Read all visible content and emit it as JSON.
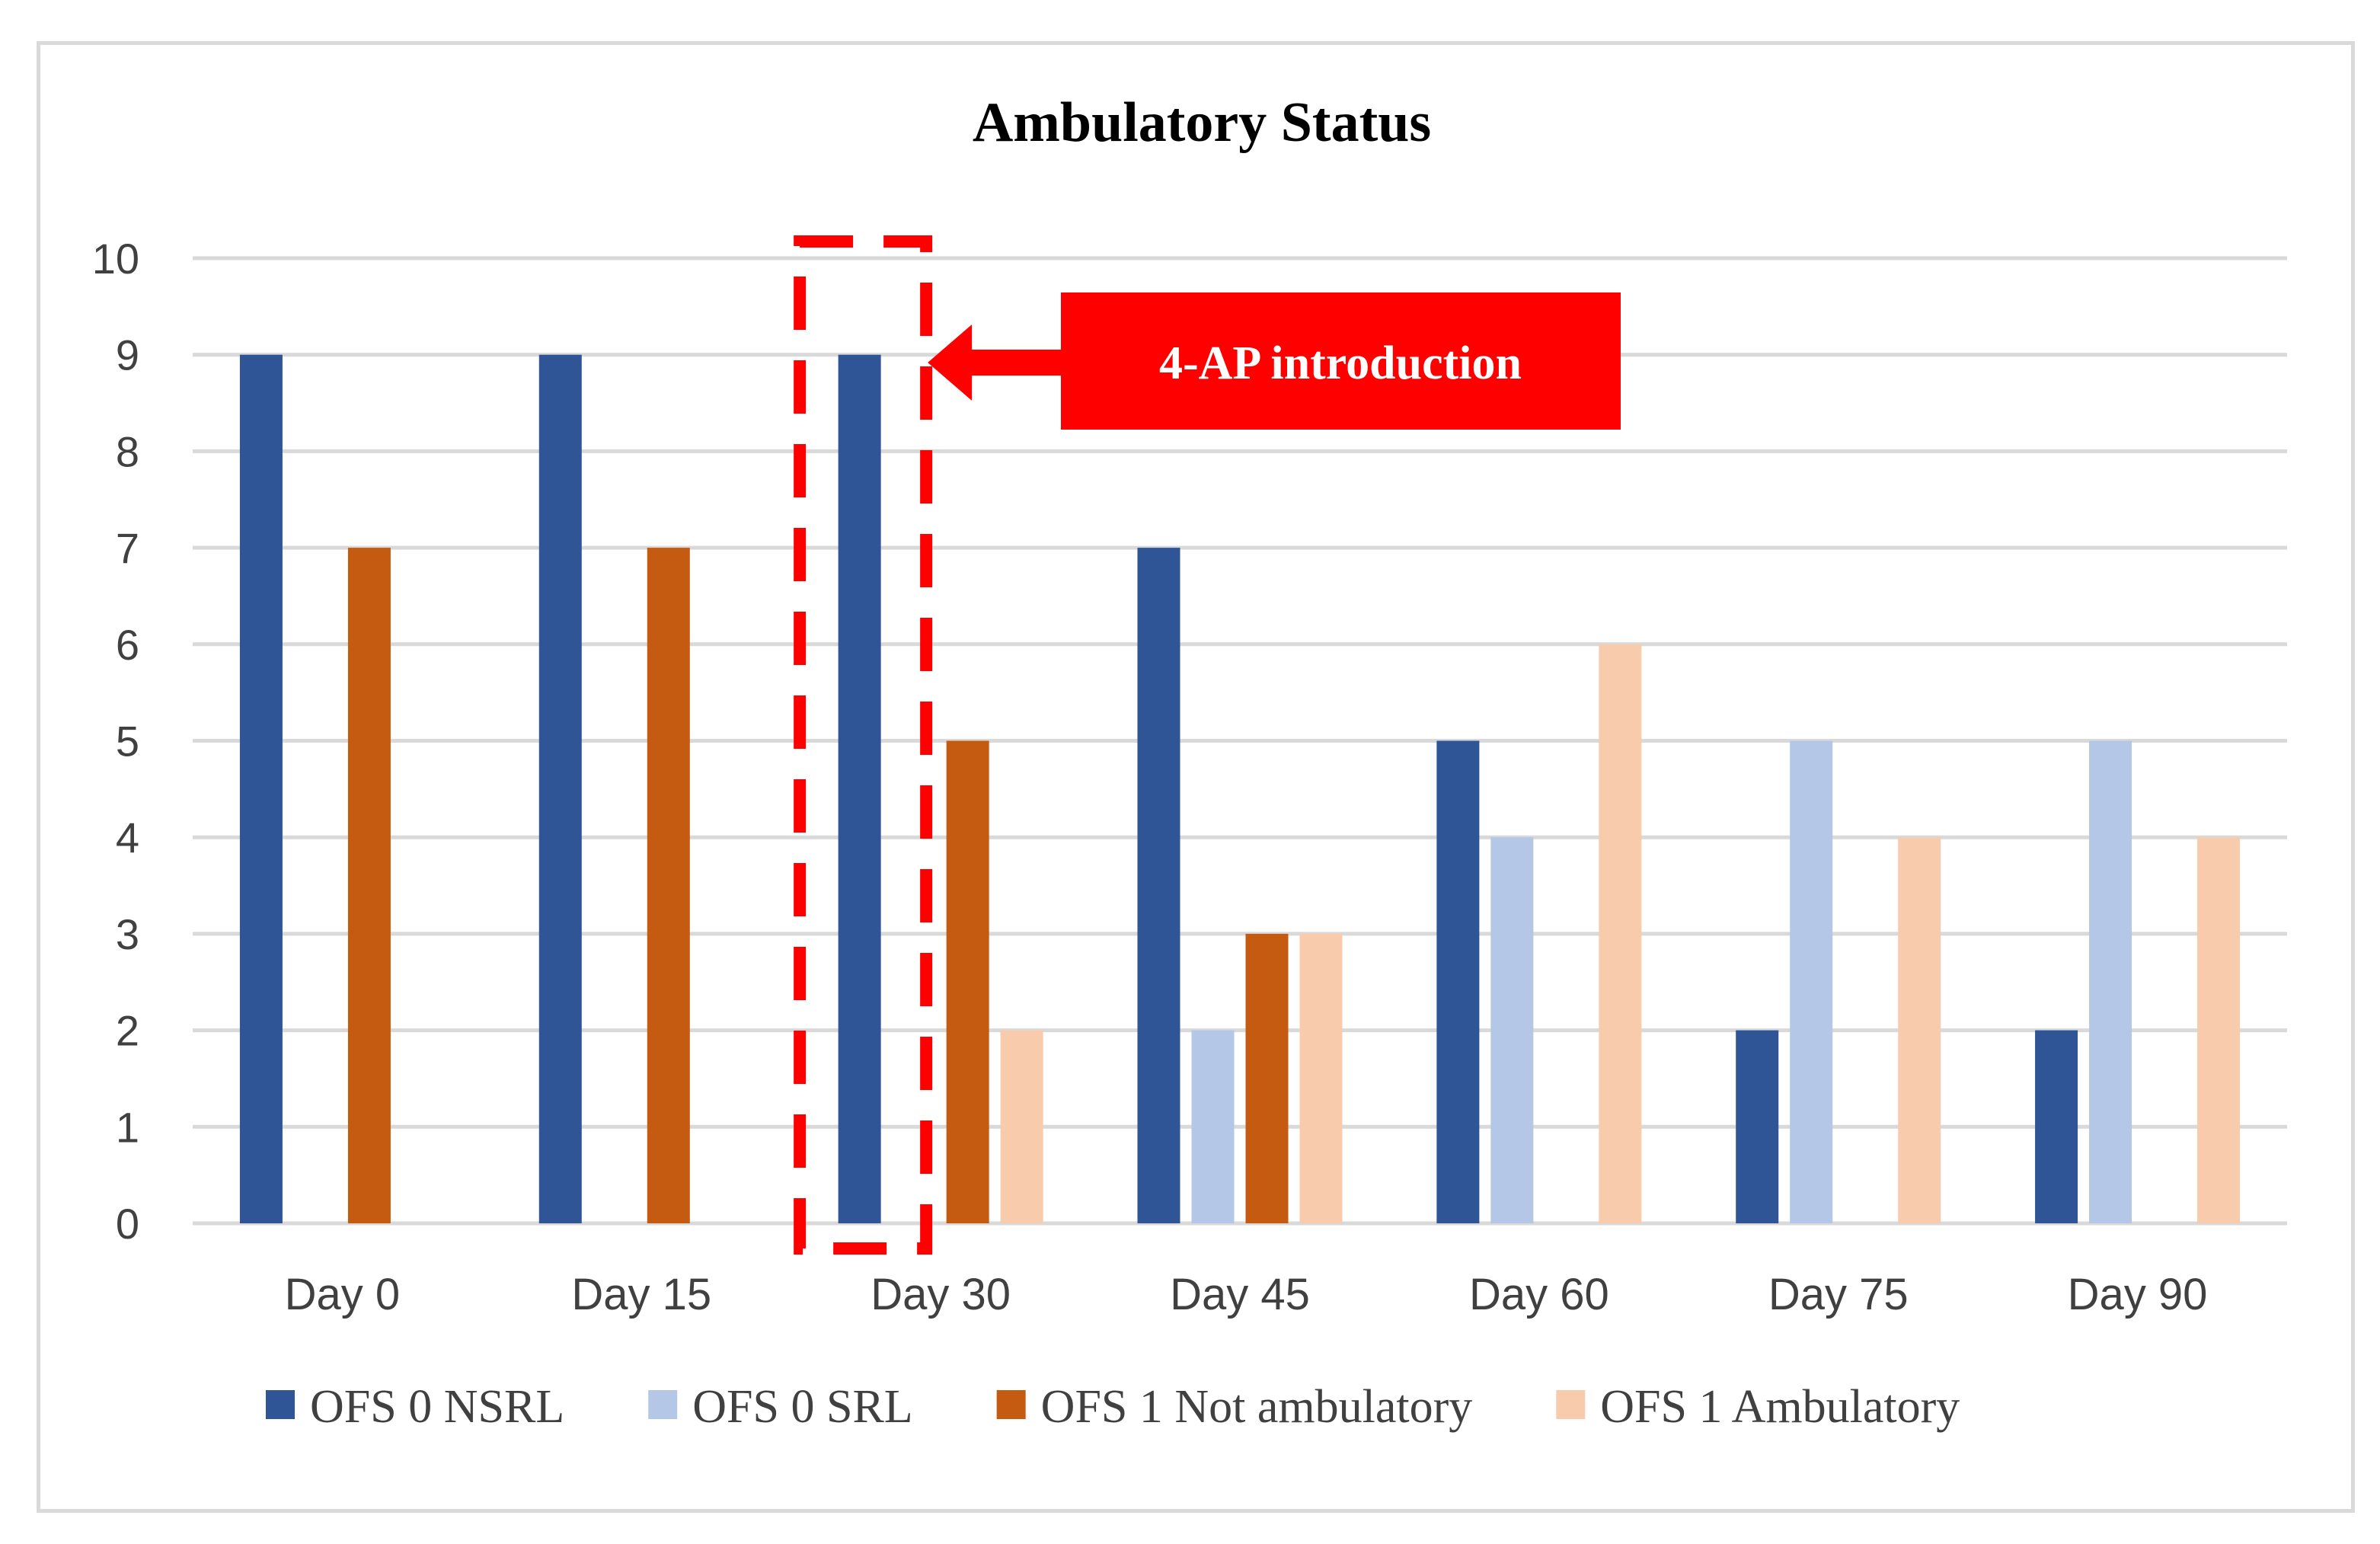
{
  "chart_data": {
    "type": "bar",
    "title": "Ambulatory Status",
    "categories": [
      "Day 0",
      "Day 15",
      "Day 30",
      "Day 45",
      "Day 60",
      "Day 75",
      "Day 90"
    ],
    "yticks": [
      "0",
      "1",
      "2",
      "3",
      "4",
      "5",
      "6",
      "7",
      "8",
      "9",
      "10"
    ],
    "ylim": [
      0,
      10
    ],
    "grid": true,
    "legend_position": "bottom",
    "series": [
      {
        "name": "OFS 0 NSRL",
        "color": "#2f5597",
        "values": [
          9,
          9,
          9,
          7,
          5,
          2,
          2
        ]
      },
      {
        "name": "OFS 0 SRL",
        "color": "#b4c7e7",
        "values": [
          0,
          0,
          0,
          2,
          4,
          5,
          5
        ]
      },
      {
        "name": "OFS 1 Not ambulatory",
        "color": "#c55a11",
        "values": [
          7,
          7,
          5,
          3,
          0,
          0,
          0
        ]
      },
      {
        "name": "OFS 1 Ambulatory",
        "color": "#f8cbad",
        "values": [
          0,
          0,
          2,
          3,
          6,
          4,
          4
        ]
      }
    ],
    "annotation": {
      "text": "4-AP introduction",
      "category": "Day 30",
      "color": "#ff0000"
    }
  }
}
